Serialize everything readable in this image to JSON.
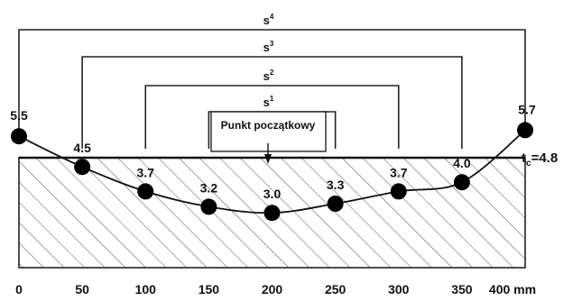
{
  "spans": [
    {
      "text": "s",
      "sup": "4",
      "from": 0,
      "to": 400
    },
    {
      "text": "s",
      "sup": "3",
      "from": 50,
      "to": 350
    },
    {
      "text": "s",
      "sup": "2",
      "from": 100,
      "to": 300
    },
    {
      "text": "s",
      "sup": "1",
      "from": 150,
      "to": 250
    }
  ],
  "start_point_label": "Punkt początkowy",
  "start_point_position": 200,
  "measurements": [
    {
      "x": 0,
      "value": 5.5,
      "label": "5.5"
    },
    {
      "x": 50,
      "value": 4.5,
      "label": "4.5"
    },
    {
      "x": 100,
      "value": 3.7,
      "label": "3.7"
    },
    {
      "x": 150,
      "value": 3.2,
      "label": "3.2"
    },
    {
      "x": 200,
      "value": 3.0,
      "label": "3.0"
    },
    {
      "x": 250,
      "value": 3.3,
      "label": "3.3"
    },
    {
      "x": 300,
      "value": 3.7,
      "label": "3.7"
    },
    {
      "x": 350,
      "value": 4.0,
      "label": "4.0"
    },
    {
      "x": 400,
      "value": 5.7,
      "label": "5.7"
    }
  ],
  "reference_line": {
    "base": "t",
    "sub": "c",
    "suffix": "=4.8",
    "value": 4.8
  },
  "x_ticks": [
    "0",
    "50",
    "100",
    "150",
    "200",
    "250",
    "300",
    "350",
    "400 mm"
  ],
  "colors": {
    "ink": "#111111",
    "hatch": "#555555",
    "background": "#ffffff"
  }
}
